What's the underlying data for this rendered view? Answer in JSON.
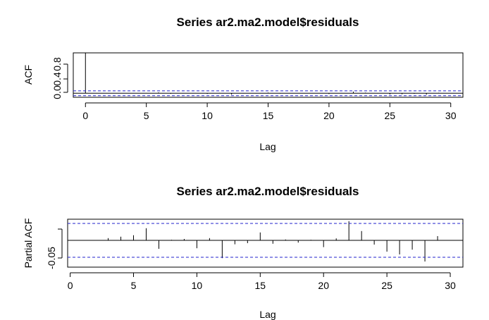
{
  "chart_data": [
    {
      "type": "bar",
      "title": "Series  ar2.ma2.model$residuals",
      "xlabel": "Lag",
      "ylabel": "ACF",
      "xlim": [
        -1,
        31
      ],
      "ylim": [
        -0.1,
        1.0
      ],
      "xticks": [
        "0",
        "5",
        "10",
        "15",
        "20",
        "25",
        "30"
      ],
      "yticks": [
        "0.0",
        "0.4",
        "0.8"
      ],
      "confidence_bound": 0.06,
      "lags": [
        0,
        1,
        2,
        3,
        4,
        5,
        6,
        7,
        8,
        9,
        10,
        11,
        12,
        13,
        14,
        15,
        16,
        17,
        18,
        19,
        20,
        21,
        22,
        23,
        24,
        25,
        26,
        27,
        28,
        29,
        30
      ],
      "values": [
        1.0,
        0.004,
        -0.003,
        0.003,
        0.005,
        0.006,
        0.02,
        -0.015,
        0.004,
        0.006,
        -0.017,
        0.008,
        -0.035,
        -0.006,
        -0.006,
        0.015,
        -0.007,
        0.003,
        -0.005,
        0.002,
        -0.02,
        0.006,
        0.04,
        0.015,
        -0.006,
        -0.03,
        -0.025,
        -0.015,
        -0.035,
        0.01,
        -0.004
      ],
      "grid": false,
      "legend": "none"
    },
    {
      "type": "bar",
      "title": "Series  ar2.ma2.model$residuals",
      "xlabel": "Lag",
      "ylabel": "Partial ACF",
      "xlim": [
        -0.2,
        31
      ],
      "ylim": [
        -0.095,
        0.075
      ],
      "xticks": [
        "0",
        "5",
        "10",
        "15",
        "20",
        "25",
        "30"
      ],
      "yticks": [
        "-0.05",
        ""
      ],
      "confidence_bound": 0.06,
      "lags": [
        1,
        2,
        3,
        4,
        5,
        6,
        7,
        8,
        9,
        10,
        11,
        12,
        13,
        14,
        15,
        16,
        17,
        18,
        19,
        20,
        21,
        22,
        23,
        24,
        25,
        26,
        27,
        28,
        29,
        30
      ],
      "values": [
        0.001,
        -0.001,
        0.008,
        0.013,
        0.018,
        0.043,
        -0.03,
        0.002,
        0.005,
        -0.028,
        0.008,
        -0.063,
        -0.014,
        -0.01,
        0.028,
        -0.012,
        0.003,
        -0.008,
        0.002,
        -0.024,
        0.007,
        0.068,
        0.033,
        -0.015,
        -0.04,
        -0.05,
        -0.033,
        -0.075,
        0.015,
        0.001
      ],
      "grid": false,
      "legend": "none"
    }
  ]
}
